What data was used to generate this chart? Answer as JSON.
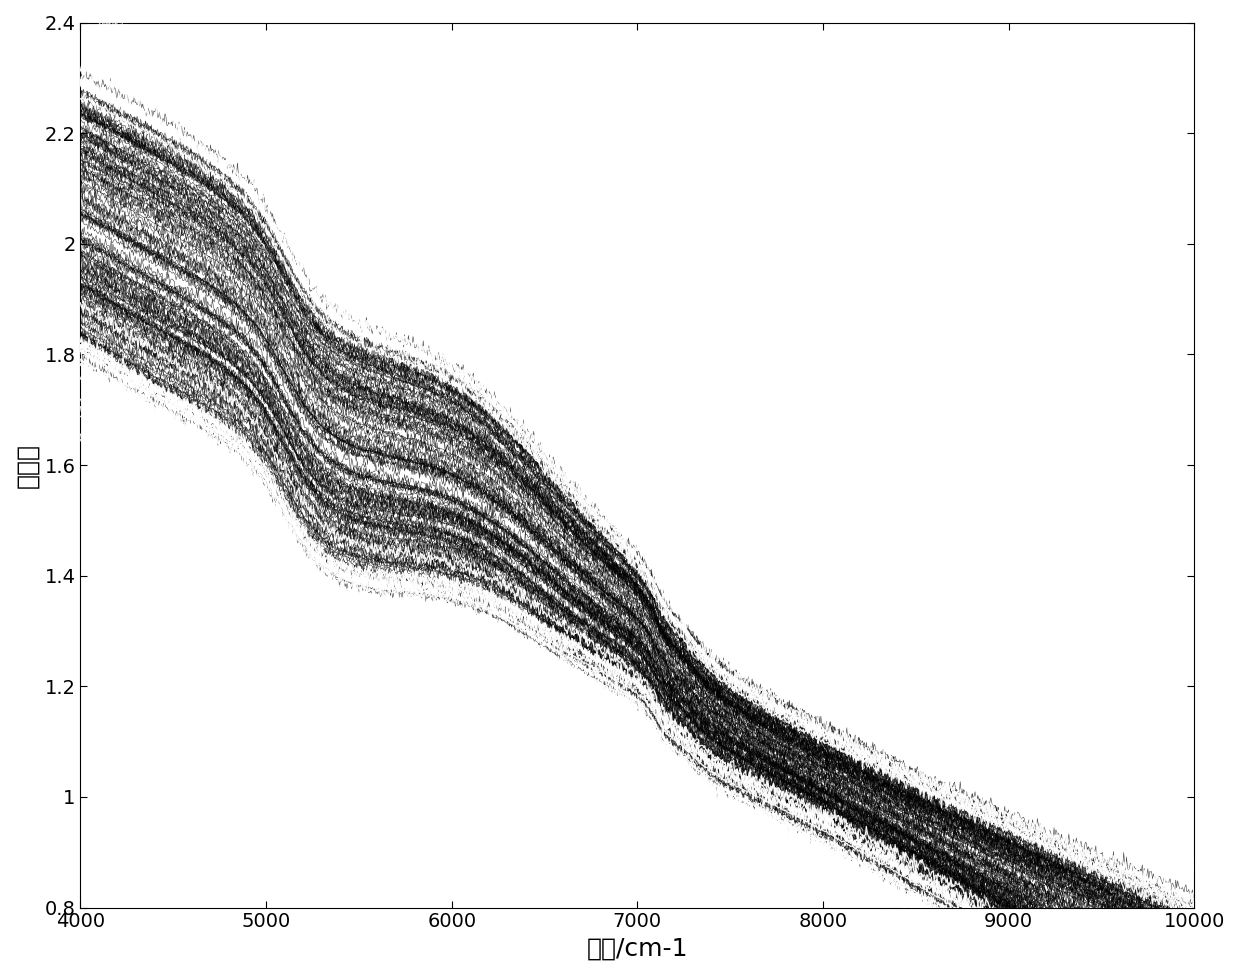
{
  "xlabel": "波长/cm-1",
  "ylabel": "吸光度",
  "xlim": [
    4000,
    10000
  ],
  "ylim": [
    0.8,
    2.4
  ],
  "xticks": [
    4000,
    5000,
    6000,
    7000,
    8000,
    9000,
    10000
  ],
  "yticks": [
    0.8,
    1.0,
    1.2,
    1.4,
    1.6,
    1.8,
    2.0,
    2.2,
    2.4
  ],
  "n_curves": 150,
  "background_color": "#ffffff",
  "xlabel_fontsize": 18,
  "ylabel_fontsize": 18,
  "tick_fontsize": 14
}
